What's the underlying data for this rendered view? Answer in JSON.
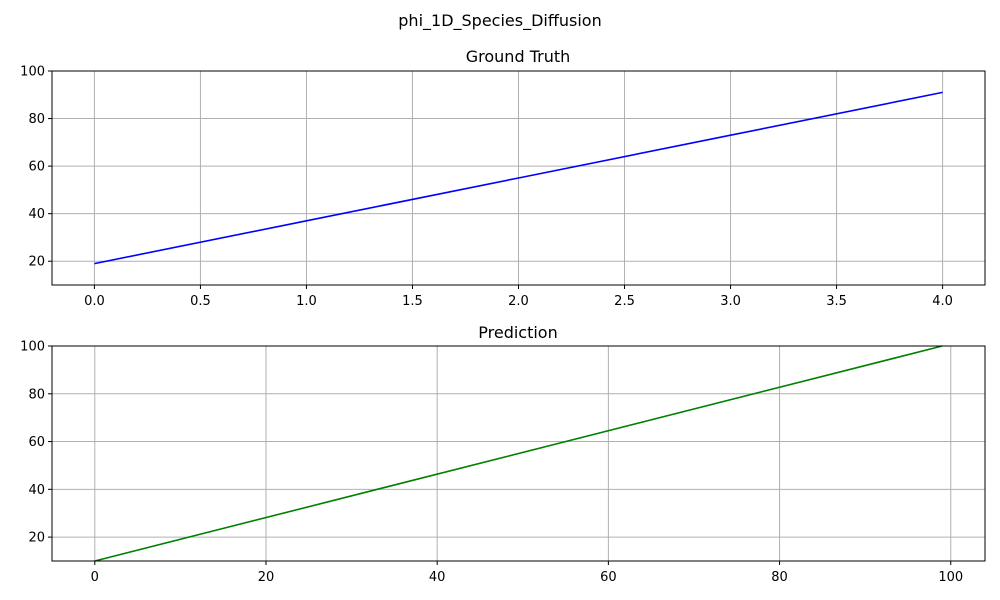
{
  "figure": {
    "suptitle": "phi_1D_Species_Diffusion"
  },
  "chart_data": [
    {
      "type": "line",
      "title": "Ground Truth",
      "xlabel": "",
      "ylabel": "",
      "xlim": [
        -0.2,
        4.2
      ],
      "ylim": [
        10,
        100
      ],
      "xticks": [
        0.0,
        0.5,
        1.0,
        1.5,
        2.0,
        2.5,
        3.0,
        3.5,
        4.0
      ],
      "xtick_labels": [
        "0.0",
        "0.5",
        "1.0",
        "1.5",
        "2.0",
        "2.5",
        "3.0",
        "3.5",
        "4.0"
      ],
      "yticks": [
        20,
        40,
        60,
        80,
        100
      ],
      "ytick_labels": [
        "20",
        "40",
        "60",
        "80",
        "100"
      ],
      "grid": true,
      "series": [
        {
          "color": "#0000ff",
          "x": [
            0,
            1,
            2,
            3,
            4
          ],
          "y": [
            19,
            37,
            55,
            73,
            91
          ]
        }
      ]
    },
    {
      "type": "line",
      "title": "Prediction",
      "xlabel": "",
      "ylabel": "",
      "xlim": [
        -5,
        104
      ],
      "ylim": [
        10,
        100
      ],
      "xticks": [
        0,
        20,
        40,
        60,
        80,
        100
      ],
      "xtick_labels": [
        "0",
        "20",
        "40",
        "60",
        "80",
        "100"
      ],
      "yticks": [
        20,
        40,
        60,
        80,
        100
      ],
      "ytick_labels": [
        "20",
        "40",
        "60",
        "80",
        "100"
      ],
      "grid": true,
      "series": [
        {
          "color": "#008000",
          "x": [
            0,
            99
          ],
          "y": [
            10,
            100
          ]
        }
      ]
    }
  ]
}
